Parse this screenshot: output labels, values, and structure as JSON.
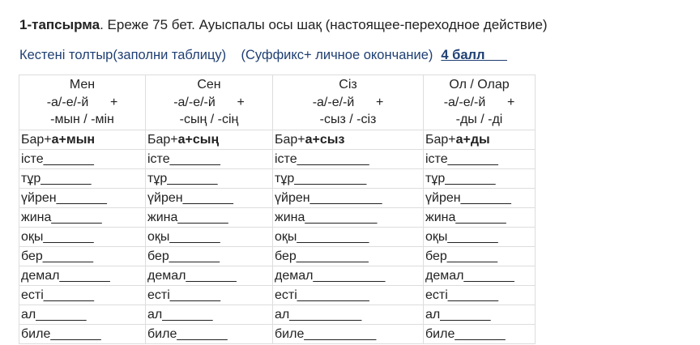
{
  "task": {
    "bold": "1-тапсырма",
    "rest": ". Ереже 75 бет. Ауыспалы осы шақ (настоящее-переходное действие)"
  },
  "instruction": {
    "text": "Кестені толтыр(заполни таблицу)    (Суффикс+ личное окончание)",
    "score": "4 балл      "
  },
  "table": {
    "headers": [
      {
        "pronoun": "Мен",
        "suffix1": "-а/-е/-й      +",
        "suffix2": "-мын / -мін"
      },
      {
        "pronoun": "Сен",
        "suffix1": "-а/-е/-й      +",
        "suffix2": "-сың / -сің"
      },
      {
        "pronoun": "Сіз",
        "suffix1": "-а/-е/-й      +",
        "suffix2": "-сыз / -сіз"
      },
      {
        "pronoun": "Ол / Олар",
        "suffix1": "-а/-е/-й      +",
        "suffix2": "-ды / -ді"
      }
    ],
    "examples": [
      {
        "stem": "Бар+",
        "ending": "а+мын"
      },
      {
        "stem": "Бар+",
        "ending": "а+сың"
      },
      {
        "stem": "Бар+",
        "ending": "а+сыз"
      },
      {
        "stem": "Бар+",
        "ending": "а+ды"
      }
    ],
    "rows": [
      [
        "істе_______",
        "істе_______",
        "істе__________",
        "істе_______"
      ],
      [
        "тұр_______",
        "тұр_______",
        "тұр__________",
        "тұр_______"
      ],
      [
        "үйрен_______",
        "үйрен_______",
        "үйрен__________",
        "үйрен_______"
      ],
      [
        "жина_______",
        "жина_______",
        "жина__________",
        "жина_______"
      ],
      [
        "оқы_______",
        "оқы_______",
        "оқы__________",
        "оқы_______"
      ],
      [
        "бер_______",
        "бер_______",
        "бер__________",
        "бер_______"
      ],
      [
        "демал_______",
        "демал_______",
        "демал__________",
        "демал_______"
      ],
      [
        "есті_______",
        "есті_______",
        "есті__________",
        "есті_______"
      ],
      [
        "ал_______",
        "ал_______",
        "ал__________",
        "ал_______"
      ],
      [
        "биле_______",
        "биле_______",
        "биле__________",
        "биле_______"
      ]
    ]
  }
}
